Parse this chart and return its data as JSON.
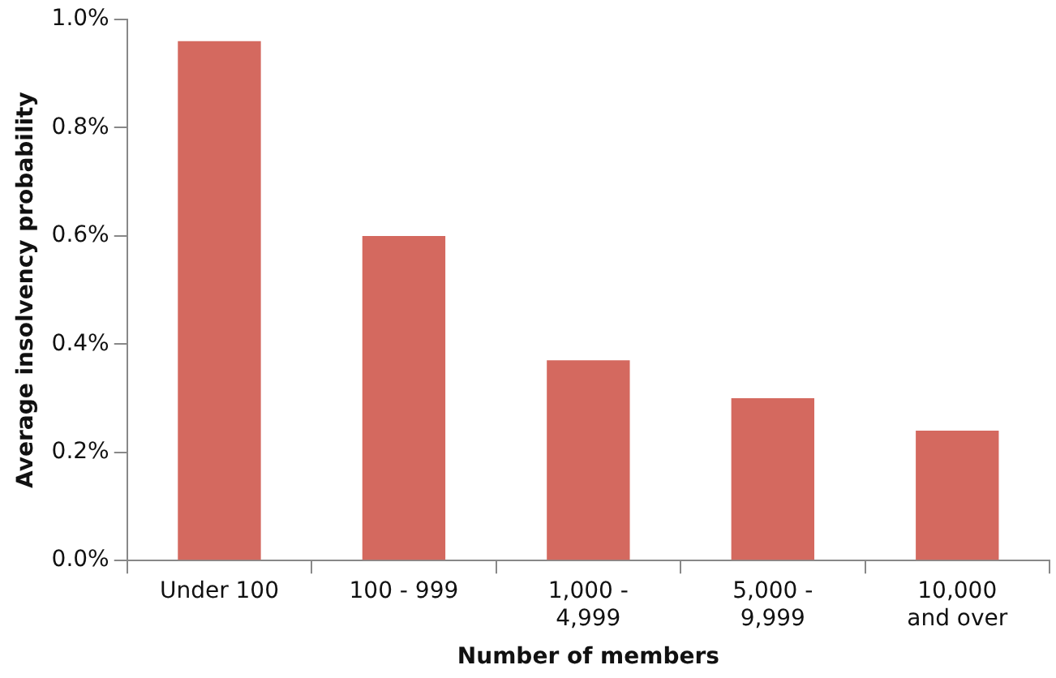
{
  "chart_data": {
    "type": "bar",
    "xlabel": "Number of members",
    "ylabel": "Average insolvency probability",
    "categories": [
      "Under 100",
      "100 - 999",
      "1,000 -\n4,999",
      "5,000 -\n9,999",
      "10,000\nand over"
    ],
    "values": [
      0.96,
      0.6,
      0.37,
      0.3,
      0.24
    ],
    "color": "#d4695f",
    "ylim": [
      0,
      1
    ],
    "yticks": [
      {
        "value": 0,
        "label": "0.0%"
      },
      {
        "value": 0.2,
        "label": "0.2%"
      },
      {
        "value": 0.4,
        "label": "0.4%"
      },
      {
        "value": 0.6,
        "label": "0.6%"
      },
      {
        "value": 0.8,
        "label": "0.8%"
      },
      {
        "value": 1,
        "label": "1.0%"
      }
    ],
    "grid": false,
    "legend": false
  }
}
